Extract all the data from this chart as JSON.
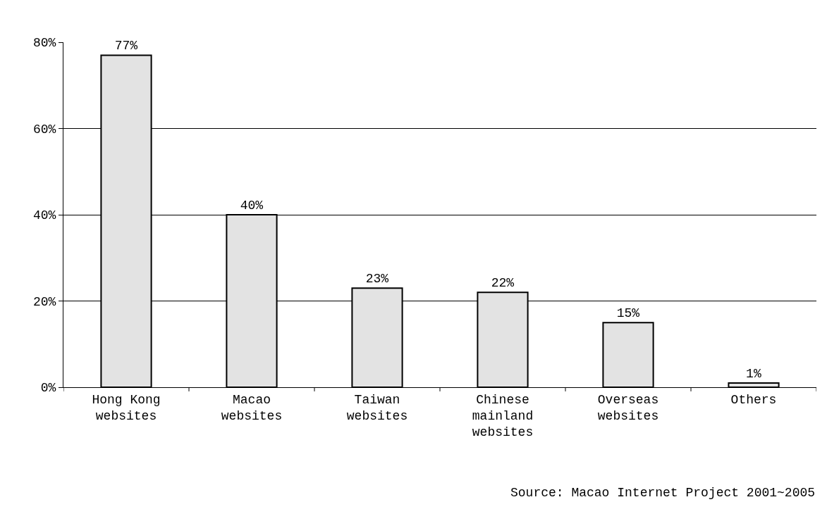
{
  "chart_data": {
    "type": "bar",
    "categories": [
      "Hong Kong\nwebsites",
      "Macao\nwebsites",
      "Taiwan\nwebsites",
      "Chinese\nmainland\nwebsites",
      "Overseas\nwebsites",
      "Others"
    ],
    "values": [
      77,
      40,
      23,
      22,
      15,
      1
    ],
    "value_labels": [
      "77%",
      "40%",
      "23%",
      "22%",
      "15%",
      "1%"
    ],
    "color": "#e3e3e3",
    "ylim": [
      0,
      80
    ],
    "yticks": [
      {
        "value": 0,
        "label": "0%"
      },
      {
        "value": 20,
        "label": "20%"
      },
      {
        "value": 40,
        "label": "40%"
      },
      {
        "value": 60,
        "label": "60%"
      },
      {
        "value": 80,
        "label": "80%"
      }
    ],
    "grid": "y",
    "legend": false,
    "annotations": [
      "Source: Macao Internet Project 2001~2005"
    ]
  }
}
